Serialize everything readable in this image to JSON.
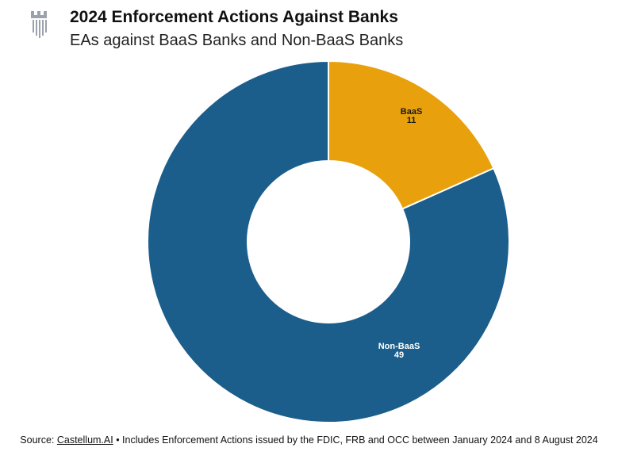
{
  "header": {
    "logo_icon": "castle-tower-icon",
    "title": "2024 Enforcement Actions Against Banks",
    "subtitle": "EAs against BaaS Banks and Non-BaaS Banks"
  },
  "chart_data": {
    "type": "pie",
    "donut": true,
    "title": "2024 Enforcement Actions Against Banks",
    "subtitle": "EAs against BaaS Banks and Non-BaaS Banks",
    "categories": [
      "BaaS",
      "Non-BaaS"
    ],
    "values": [
      11,
      49
    ],
    "colors": [
      "#E8A10C",
      "#1B5E8C"
    ],
    "label_colors": [
      "#1a1a1a",
      "#ffffff"
    ],
    "legend": "none"
  },
  "footer": {
    "prefix": "Source: ",
    "link_text": "Castellum.AI",
    "note": " • Includes Enforcement Actions issued by the FDIC, FRB and OCC between January 2024 and 8 August 2024"
  }
}
